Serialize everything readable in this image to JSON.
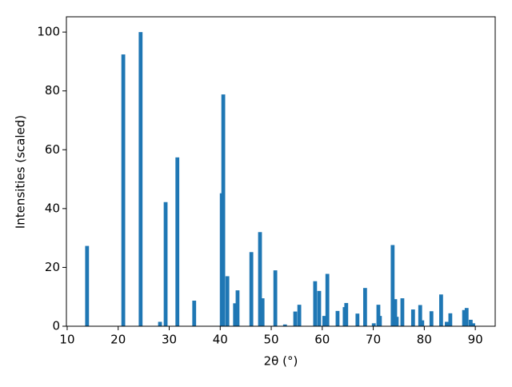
{
  "chart_data": {
    "type": "bar",
    "x_label": "2θ (°)",
    "y_label": "Intensities (scaled)",
    "x": [
      13.9,
      21.0,
      24.4,
      28.2,
      29.3,
      31.6,
      34.9,
      40.3,
      40.6,
      41.4,
      42.9,
      43.4,
      46.1,
      47.8,
      48.3,
      50.8,
      52.7,
      54.7,
      55.5,
      58.6,
      59.4,
      60.4,
      61.0,
      63.0,
      64.4,
      64.7,
      66.9,
      68.4,
      70.1,
      71.0,
      71.3,
      73.8,
      74.3,
      74.6,
      75.7,
      77.8,
      79.2,
      79.6,
      81.4,
      83.3,
      84.4,
      85.1,
      87.8,
      88.3,
      89.1,
      89.6
    ],
    "values": [
      27.3,
      92.4,
      100,
      1.5,
      42.2,
      57.4,
      8.7,
      45.2,
      78.8,
      17,
      7.8,
      12.2,
      25.2,
      32,
      9.5,
      19,
      0.6,
      5,
      7.3,
      15.3,
      12,
      3.5,
      17.8,
      5.2,
      6.5,
      7.9,
      4.3,
      13,
      1,
      7.3,
      3.5,
      27.6,
      9.2,
      3.2,
      9.5,
      5.7,
      7.2,
      2,
      5.1,
      10.8,
      1.5,
      4.4,
      5.5,
      6.2,
      2.2,
      1
    ],
    "color": "#1f77b4",
    "xlim": [
      9.85,
      93.9
    ],
    "xticks": [
      10,
      20,
      30,
      40,
      50,
      60,
      70,
      80,
      90
    ],
    "ylim": [
      0,
      105.2
    ],
    "yticks": [
      0,
      20,
      40,
      60,
      80,
      100
    ]
  }
}
